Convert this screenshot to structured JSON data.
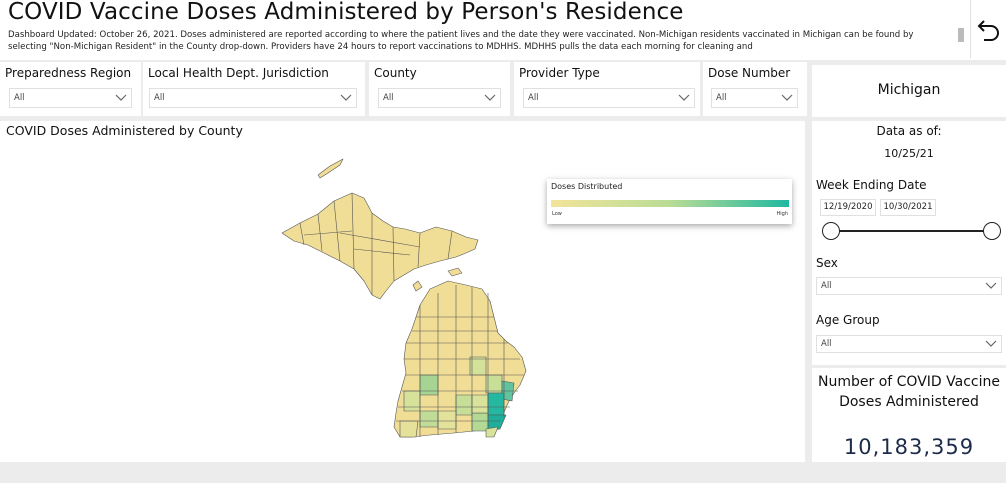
{
  "header": {
    "title": "COVID Vaccine Doses Administered by Person's Residence",
    "description": "Dashboard Updated: October 26, 2021. Doses administered are reported according to where the patient lives and the date they were vaccinated. Non-Michigan residents vaccinated in Michigan can be found by selecting \"Non-Michigan Resident\" in the County drop-down. Providers have 24 hours to report vaccinations to MDHHS. MDHHS pulls the data each morning for cleaning and"
  },
  "filters": [
    {
      "label": "Preparedness Region",
      "value": "All"
    },
    {
      "label": "Local Health Dept. Jurisdiction",
      "value": "All"
    },
    {
      "label": "County",
      "value": "All"
    },
    {
      "label": "Provider Type",
      "value": "All"
    },
    {
      "label": "Dose Number",
      "value": "All"
    }
  ],
  "state_card": {
    "name": "Michigan"
  },
  "map": {
    "title": "COVID Doses Administered by County",
    "legend": {
      "title": "Doses Distributed",
      "low": "Low",
      "high": "High"
    }
  },
  "data_as_of": {
    "label": "Data as of:",
    "date": "10/25/21"
  },
  "week_ending": {
    "label": "Week Ending  Date",
    "start": "12/19/2020",
    "end": "10/30/2021"
  },
  "sex": {
    "label": "Sex",
    "value": "All"
  },
  "age_group": {
    "label": "Age Group",
    "value": "All"
  },
  "total": {
    "label": "Number of COVID Vaccine Doses Administered",
    "value": "10,183,359"
  },
  "colors": {
    "low": "#f2e49a",
    "mid": "#b9dc95",
    "high": "#20b8a0",
    "accent": "#1c2c4a"
  }
}
